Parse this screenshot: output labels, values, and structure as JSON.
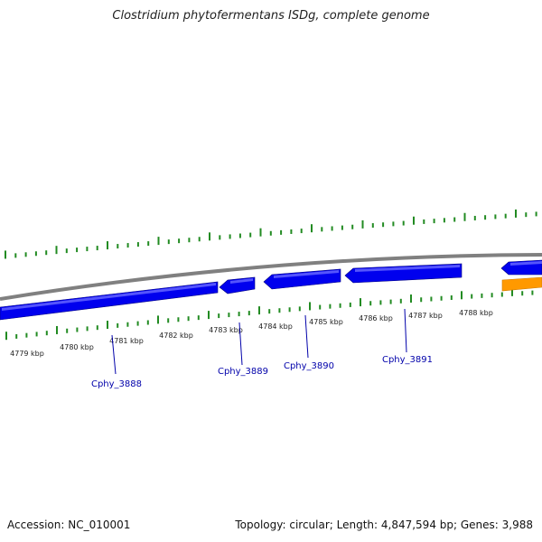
{
  "title": "Clostridium phytofermentans ISDg, complete genome",
  "footer": {
    "accession": "Accession: NC_010001",
    "summary": "Topology: circular; Length: 4,847,594 bp; Genes: 3,988"
  },
  "colors": {
    "backbone": "#808080",
    "gene_forward": "#0000ee",
    "gene_other": "#ff9900",
    "ticks": "#228b22",
    "gene_label": "#0000aa",
    "tick_label": "#222222"
  },
  "scale": {
    "unit": "kbp",
    "labels": [
      "4779 kbp",
      "4780 kbp",
      "4781 kbp",
      "4782 kbp",
      "4783 kbp",
      "4784 kbp",
      "4785 kbp",
      "4786 kbp",
      "4787 kbp",
      "4788 kbp"
    ]
  },
  "genes": [
    {
      "label": "",
      "color": "#0000ee"
    },
    {
      "label": "Cphy_3888",
      "color": "#0000ee"
    },
    {
      "label": "Cphy_3889",
      "color": "#0000ee"
    },
    {
      "label": "Cphy_3890",
      "color": "#0000ee"
    },
    {
      "label": "Cphy_3891",
      "color": "#0000ee"
    },
    {
      "label": "",
      "color": "#0000ee"
    },
    {
      "label": "",
      "color": "#ff9900"
    }
  ]
}
